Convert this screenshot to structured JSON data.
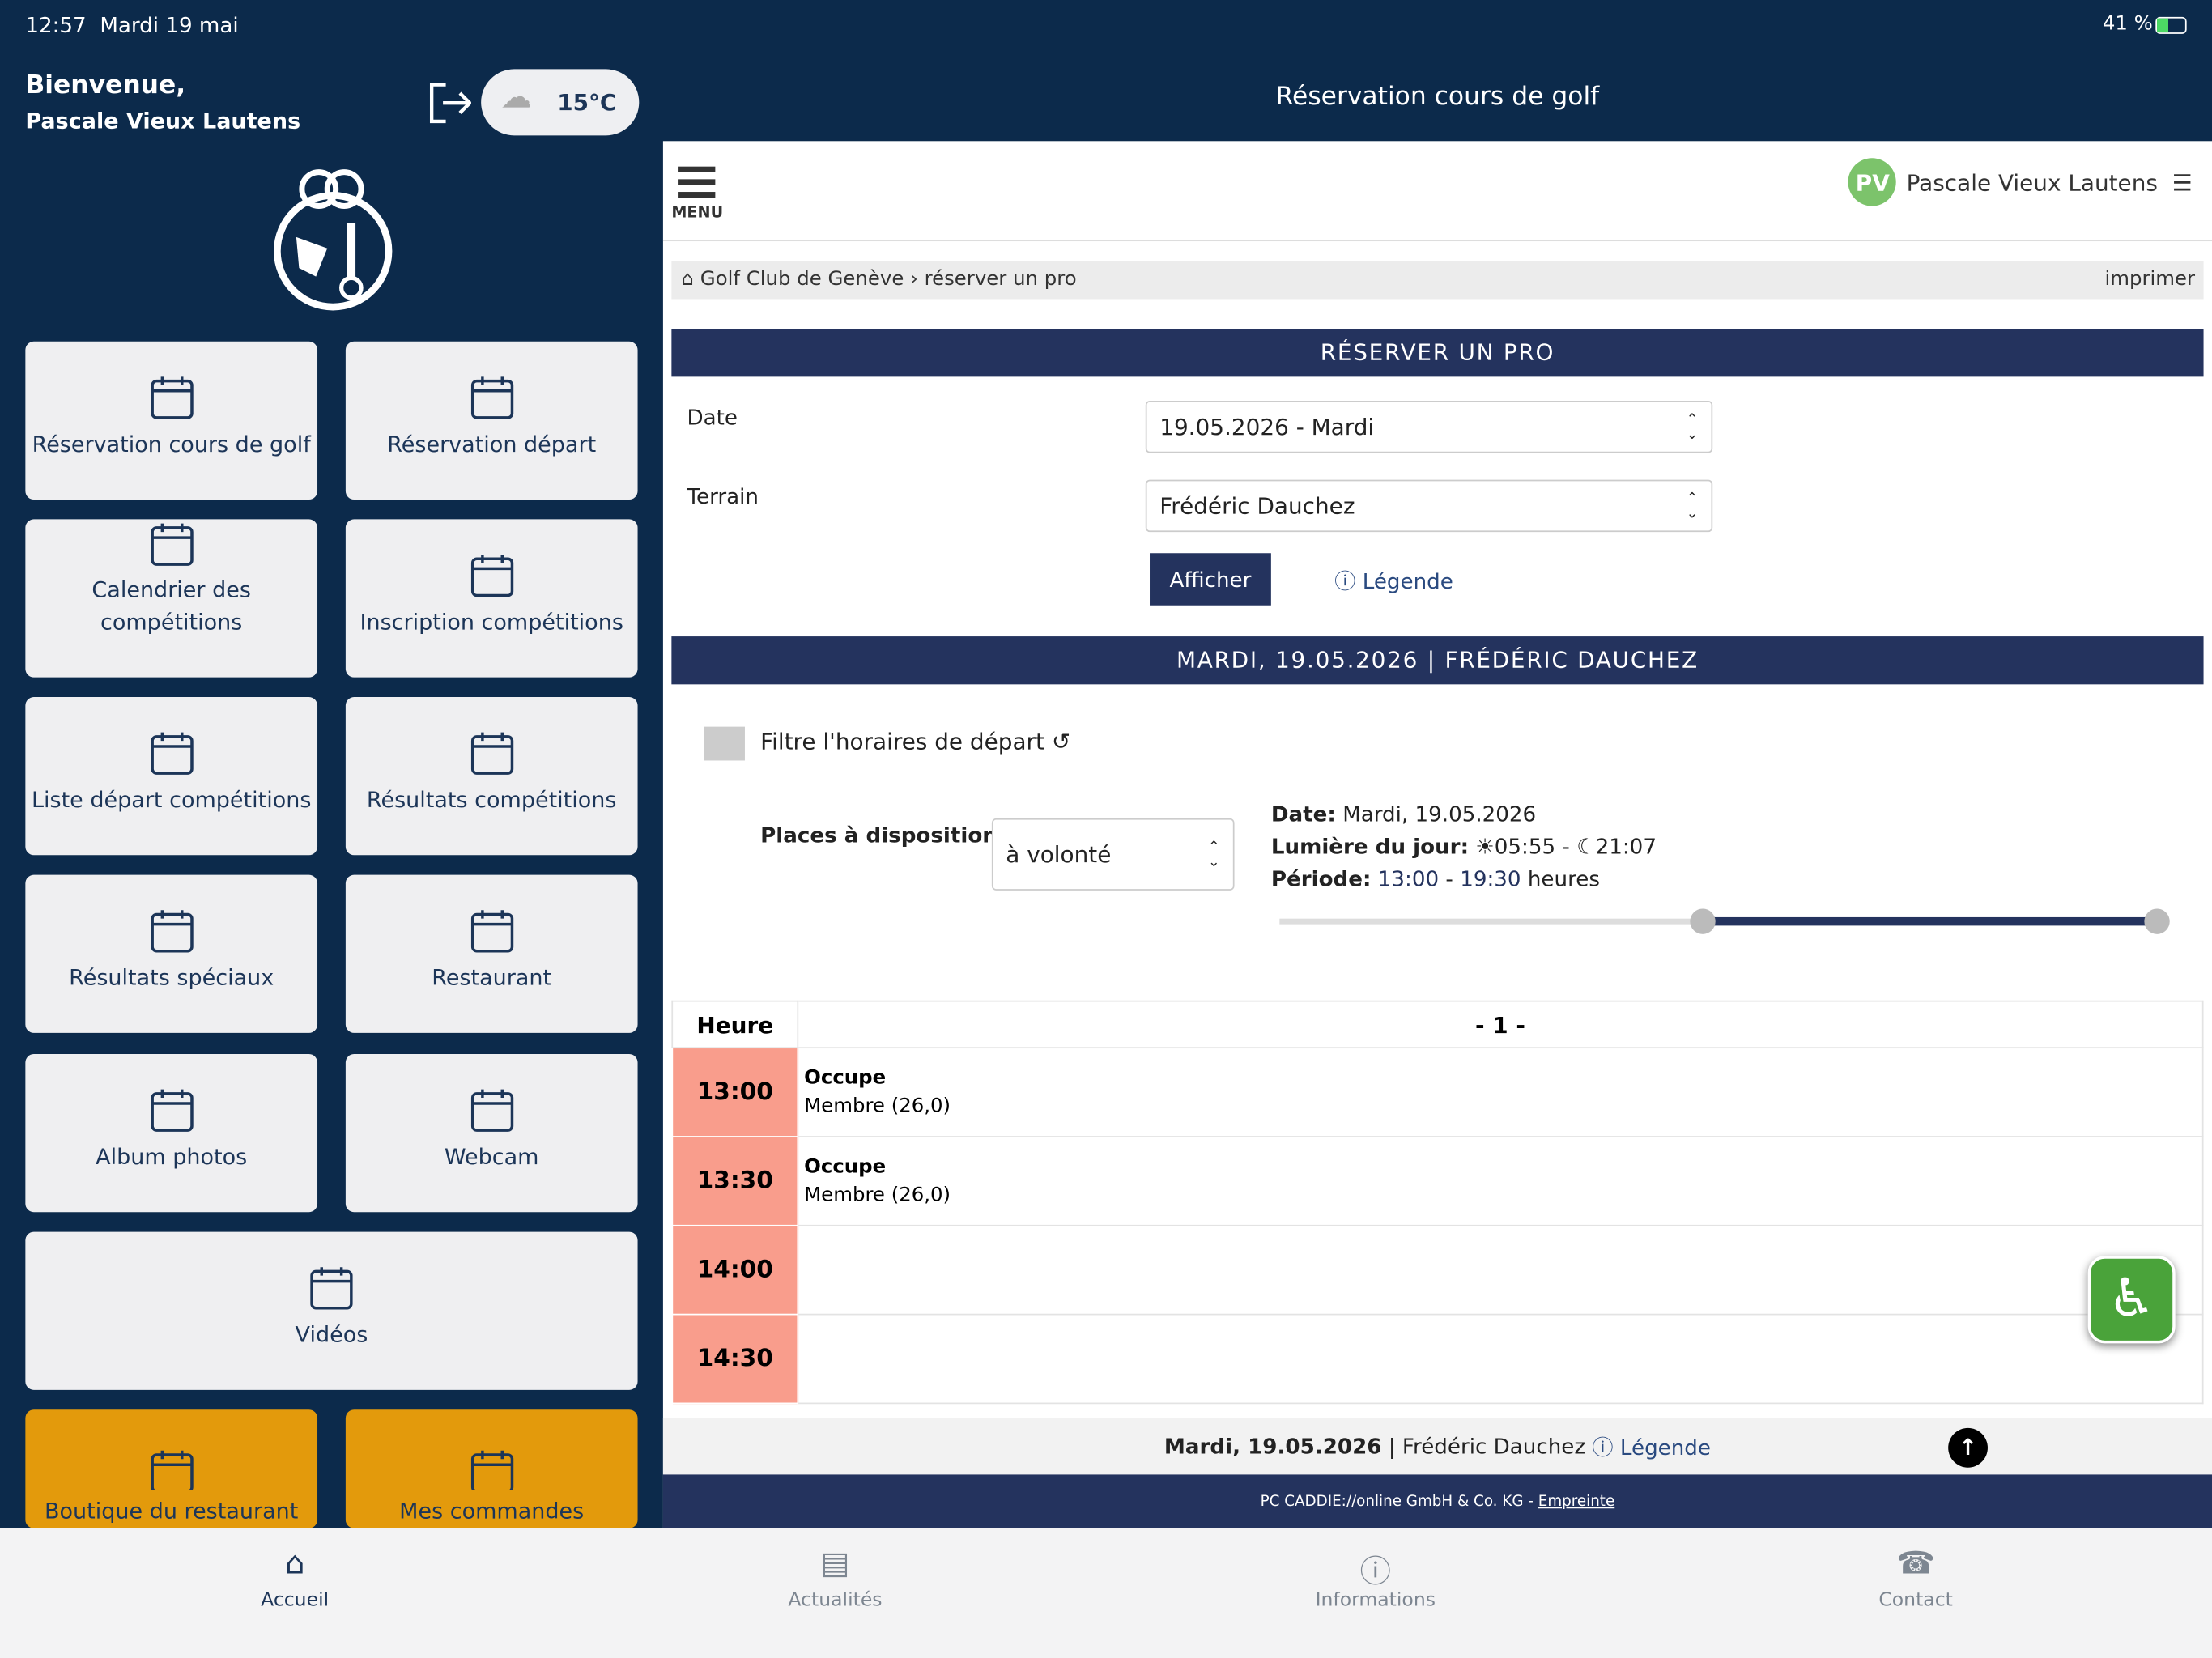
{
  "status_bar": {
    "time": "12:57",
    "date": "Mardi 19 mai",
    "battery": "41 %"
  },
  "sidebar": {
    "greeting": "Bienvenue,",
    "user": "Pascale Vieux Lautens",
    "weather": "15°C",
    "tiles": [
      "Réservation cours de golf",
      "Réservation départ",
      "Calendrier des compétitions",
      "Inscription compétitions",
      "Liste départ compétitions",
      "Résultats compétitions",
      "Résultats spéciaux",
      "Restaurant",
      "Album photos",
      "Webcam",
      "Vidéos",
      "Boutique du restaurant",
      "Mes commandes"
    ]
  },
  "header": {
    "title": "Réservation cours de golf"
  },
  "web": {
    "menu": "MENU",
    "avatar": "PV",
    "user": "Pascale Vieux Lautens",
    "breadcrumb": [
      "Golf Club de Genève",
      "réserver un pro"
    ],
    "print": "imprimer",
    "section_title": "RÉSERVER UN PRO",
    "form": {
      "date_label": "Date",
      "date_value": "19.05.2026 - Mardi",
      "terrain_label": "Terrain",
      "terrain_value": "Frédéric Dauchez",
      "button": "Afficher",
      "legend": "Légende"
    },
    "day_title": "MARDI, 19.05.2026 | FRÉDÉRIC DAUCHEZ",
    "filter": "Filtre l'horaires de départ",
    "places_label": "Places à disposition",
    "places_value": "à volonté",
    "info": {
      "date_label": "Date:",
      "date_value": "Mardi, 19.05.2026",
      "daylight_label": "Lumière du jour:",
      "sunrise": "05:55",
      "sep": "-",
      "sunset": "21:07",
      "period_label": "Période:",
      "period_start": "13:00",
      "period_end": "19:30",
      "period_unit": "heures"
    },
    "table": {
      "header": [
        "Heure",
        "- 1 -"
      ],
      "rows": [
        {
          "time": "13:00",
          "status": "Occupe",
          "detail": "Membre (26,0)"
        },
        {
          "time": "13:30",
          "status": "Occupe",
          "detail": "Membre (26,0)"
        },
        {
          "time": "14:00"
        },
        {
          "time": "14:30"
        }
      ]
    },
    "footer_bar": {
      "date": "Mardi, 19.05.2026",
      "sep": "|",
      "pro": "Frédéric Dauchez",
      "legend": "Légende"
    },
    "copyright": "PC CADDIE://online GmbH & Co. KG - ",
    "imprint": "Empreinte"
  },
  "tabs": [
    "Accueil",
    "Actualités",
    "Informations",
    "Contact"
  ]
}
